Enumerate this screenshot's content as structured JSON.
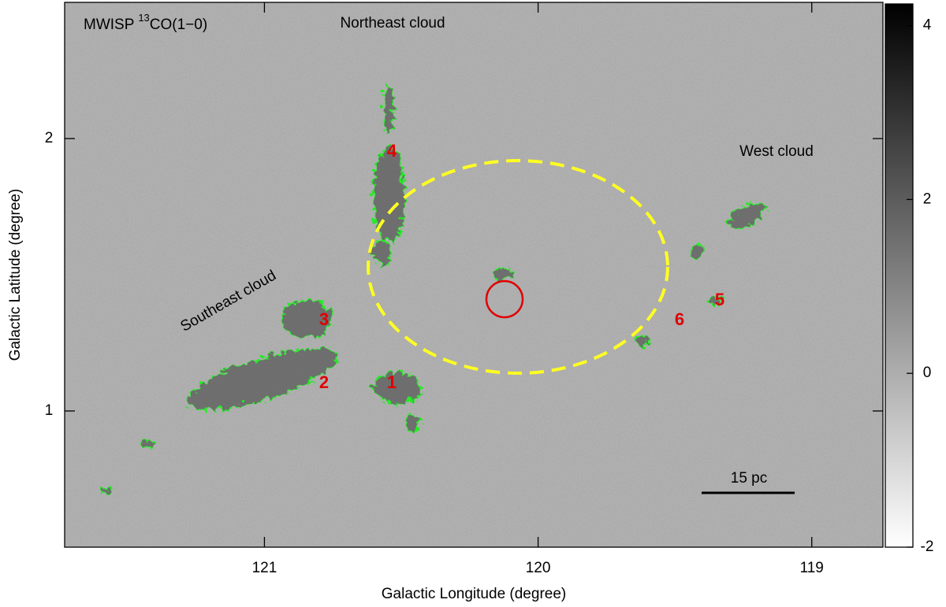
{
  "chart_data": {
    "type": "image",
    "title": {
      "prefix": "MWISP",
      "isotope": "13",
      "molecule": "CO(1−0)"
    },
    "x_label": "Galactic Longitude (degree)",
    "y_label": "Galactic Latitude (degree)",
    "xlim": [
      121.73,
      118.74
    ],
    "xticks": [
      121,
      120,
      119
    ],
    "ylim": [
      0.5,
      2.5
    ],
    "yticks": [
      1,
      2
    ],
    "colorbar": {
      "clim": [
        -2.0,
        4.25
      ],
      "ticks": [
        -2,
        0,
        2,
        4
      ],
      "cmap": [
        "#ffffff",
        "#000000"
      ]
    },
    "annotations": {
      "regions": [
        "Northeast cloud",
        "West cloud",
        "Southeast cloud"
      ],
      "markers": [
        "1",
        "2",
        "3",
        "4",
        "5",
        "6"
      ],
      "scale_bar": "15 pc"
    }
  }
}
